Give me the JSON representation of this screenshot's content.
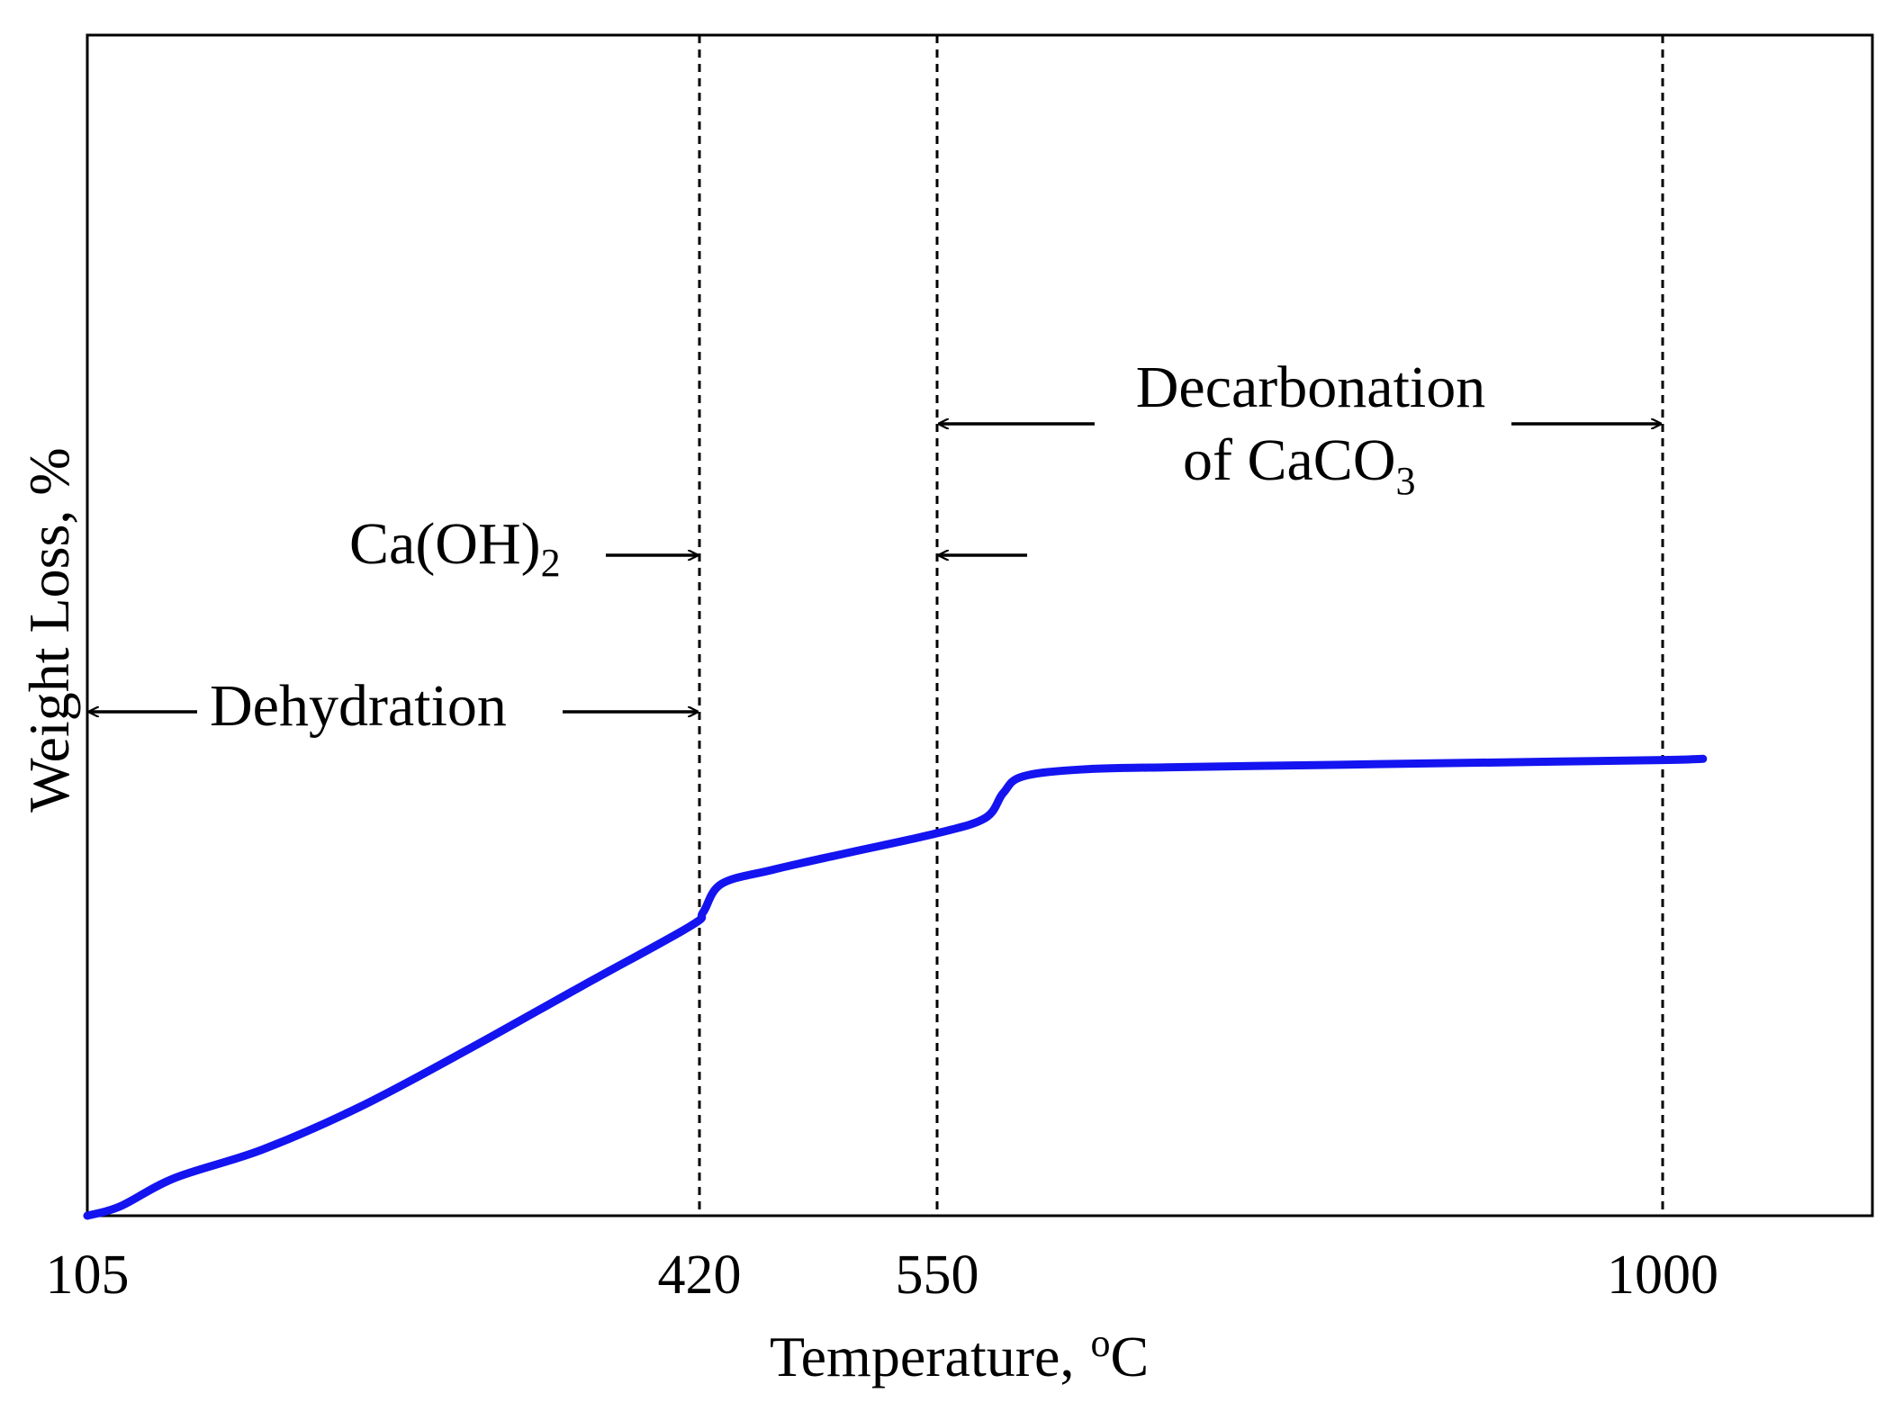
{
  "chart_data": {
    "type": "line",
    "title": "",
    "xlabel": "Temperature,",
    "xlabel_unit_sup": "o",
    "xlabel_unit": "C",
    "ylabel": "Weight Loss, %",
    "xlim": [
      105,
      1130
    ],
    "ylim": [
      0,
      100
    ],
    "x_ticks": [
      105,
      420,
      550,
      1000
    ],
    "x_tick_labels": [
      "105",
      "420",
      "550",
      "1000"
    ],
    "grid": false,
    "vlines": [
      420,
      550,
      1000
    ],
    "series": [
      {
        "name": "Weight Loss",
        "color": "#1414F0",
        "x": [
          105,
          122,
          150,
          195,
          245,
          300,
          360,
          415,
          422,
          432,
          460,
          500,
          550,
          580,
          591,
          603,
          640,
          700,
          800,
          900,
          1000,
          1025
        ],
        "y": [
          0,
          0.8,
          3.2,
          5.6,
          9.2,
          14.0,
          19.5,
          24.5,
          25.7,
          28.1,
          29.3,
          30.7,
          32.4,
          33.7,
          35.8,
          37.2,
          37.8,
          38.0,
          38.2,
          38.4,
          38.6,
          38.7
        ]
      }
    ],
    "annotations": [
      {
        "id": "dehydration",
        "text": "Dehydration",
        "range": [
          105,
          420
        ]
      },
      {
        "id": "caoh2",
        "text": "Ca(OH)",
        "sub": "2",
        "range": [
          420,
          550
        ]
      },
      {
        "id": "decarbonation",
        "line1": "Decarbonation",
        "line2": "of CaCO",
        "sub": "3",
        "range": [
          550,
          1000
        ]
      }
    ]
  }
}
